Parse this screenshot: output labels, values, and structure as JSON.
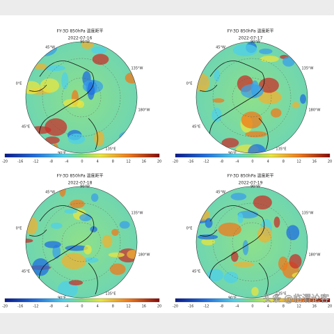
{
  "panels": [
    {
      "title": "FY-3D 850hPa 温度距平",
      "date": "2022-07-16",
      "lon_labels": [
        "45°W",
        "90°W",
        "135°W",
        "180°W",
        "135°E",
        "90°E",
        "45°E",
        "0°E"
      ],
      "colorbar_ticks": [
        -20,
        -16,
        -12,
        -8,
        -4,
        0,
        4,
        8,
        12,
        16,
        20
      ]
    },
    {
      "title": "FY-3D 850hPa 温度距平",
      "date": "2022-07-17",
      "lon_labels": [
        "45°W",
        "90°W",
        "135°W",
        "180°W",
        "135°E",
        "90°E",
        "45°E",
        "0°E"
      ],
      "colorbar_ticks": [
        -20,
        -16,
        -12,
        -8,
        -4,
        0,
        4,
        8,
        12,
        16,
        20
      ]
    },
    {
      "title": "FY-3D 850hPa 温度距平",
      "date": "2022-07-18",
      "lon_labels": [
        "45°W",
        "90°W",
        "135°W",
        "180°W",
        "135°E",
        "90°E",
        "45°E",
        "0°E"
      ],
      "colorbar_ticks": [
        -20,
        -16,
        -12,
        -8,
        -4,
        0,
        4,
        8,
        12,
        16,
        20
      ]
    },
    {
      "title": "FY-3D 850hPa 温度距平",
      "date": "2022-07-19",
      "lon_labels": [
        "45°W",
        "90°W",
        "135°W",
        "180°W",
        "135°E",
        "90°E",
        "45°E",
        "0°E"
      ],
      "colorbar_ticks": [
        -20,
        -16,
        -12,
        -8,
        -4,
        0,
        4,
        8,
        12,
        16,
        20
      ]
    }
  ],
  "watermark": "头条 @临渭论客"
}
